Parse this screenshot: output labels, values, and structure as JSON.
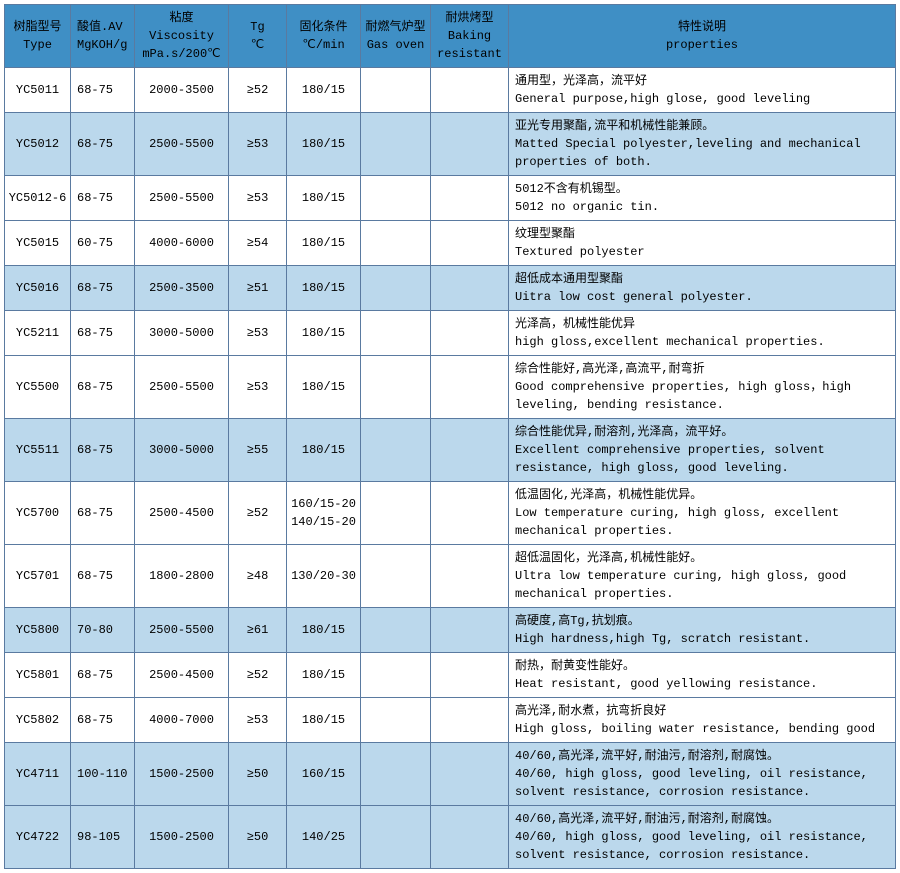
{
  "colors": {
    "header_bg": "#3f8fc5",
    "row_alt_bg": "#bbd8ec",
    "row_bg": "#ffffff",
    "border": "#5a7aa0",
    "text": "#000000"
  },
  "headers": {
    "type": "树脂型号\nType",
    "acid": "酸值.AV\nMgKOH/g",
    "visc": "粘度\nViscosity\nmPa.s/200℃",
    "tg": "Tg\n℃",
    "cure": "固化条件\n℃/min",
    "gas": "耐燃气炉型\nGas oven",
    "bake": "耐烘烤型\nBaking\nresistant",
    "prop": "特性说明\nproperties"
  },
  "rows": [
    {
      "alt": false,
      "type": "YC5011",
      "acid": "68-75",
      "visc": "2000-3500",
      "tg": "≥52",
      "cure": "180/15",
      "gas": "",
      "bake": "",
      "prop_cn": "通用型，光泽高，流平好",
      "prop_en": "General purpose,high glose, good leveling"
    },
    {
      "alt": true,
      "type": "YC5012",
      "acid": "68-75",
      "visc": "2500-5500",
      "tg": "≥53",
      "cure": "180/15",
      "gas": "",
      "bake": "",
      "prop_cn": "亚光专用聚酯,流平和机械性能兼顾。",
      "prop_en": "Matted Special polyester,leveling and mechanical properties of both."
    },
    {
      "alt": false,
      "type": "YC5012-6",
      "acid": "68-75",
      "visc": "2500-5500",
      "tg": "≥53",
      "cure": "180/15",
      "gas": "",
      "bake": "",
      "prop_cn": "5012不含有机锡型。",
      "prop_en": "5012 no organic tin."
    },
    {
      "alt": false,
      "type": "YC5015",
      "acid": "60-75",
      "visc": "4000-6000",
      "tg": "≥54",
      "cure": "180/15",
      "gas": "",
      "bake": "",
      "prop_cn": "纹理型聚酯",
      "prop_en": "Textured polyester"
    },
    {
      "alt": true,
      "type": "YC5016",
      "acid": "68-75",
      "visc": "2500-3500",
      "tg": "≥51",
      "cure": "180/15",
      "gas": "",
      "bake": "",
      "prop_cn": "超低成本通用型聚酯",
      "prop_en": "Uitra low cost general polyester."
    },
    {
      "alt": false,
      "type": "YC5211",
      "acid": "68-75",
      "visc": "3000-5000",
      "tg": "≥53",
      "cure": "180/15",
      "gas": "",
      "bake": "",
      "prop_cn": "光泽高，机械性能优异",
      "prop_en": "high gloss,excellent mechanical properties."
    },
    {
      "alt": false,
      "type": "YC5500",
      "acid": "68-75",
      "visc": "2500-5500",
      "tg": "≥53",
      "cure": "180/15",
      "gas": "",
      "bake": "",
      "prop_cn": "综合性能好,高光泽,高流平,耐弯折",
      "prop_en": "Good comprehensive properties, high gloss，high leveling, bending resistance."
    },
    {
      "alt": true,
      "type": "YC5511",
      "acid": "68-75",
      "visc": "3000-5000",
      "tg": "≥55",
      "cure": "180/15",
      "gas": "",
      "bake": "",
      "prop_cn": "综合性能优异,耐溶剂,光泽高，流平好。",
      "prop_en": "Excellent comprehensive properties, solvent resistance, high gloss, good leveling."
    },
    {
      "alt": false,
      "type": "YC5700",
      "acid": "68-75",
      "visc": "2500-4500",
      "tg": "≥52",
      "cure": "160/15-20\n140/15-20",
      "gas": "",
      "bake": "",
      "prop_cn": "低温固化,光泽高，机械性能优异。",
      "prop_en": "Low temperature curing, high gloss, excellent mechanical properties."
    },
    {
      "alt": false,
      "type": "YC5701",
      "acid": "68-75",
      "visc": "1800-2800",
      "tg": "≥48",
      "cure": "130/20-30",
      "gas": "",
      "bake": "",
      "prop_cn": "超低温固化，光泽高,机械性能好。",
      "prop_en": "Ultra low temperature curing, high gloss, good mechanical properties."
    },
    {
      "alt": true,
      "type": "YC5800",
      "acid": "70-80",
      "visc": "2500-5500",
      "tg": "≥61",
      "cure": "180/15",
      "gas": "",
      "bake": "",
      "prop_cn": "高硬度,高Tg,抗划痕。",
      "prop_en": "High hardness,high Tg, scratch resistant."
    },
    {
      "alt": false,
      "type": "YC5801",
      "acid": "68-75",
      "visc": "2500-4500",
      "tg": "≥52",
      "cure": "180/15",
      "gas": "",
      "bake": "",
      "prop_cn": "耐热，耐黄变性能好。",
      "prop_en": "Heat resistant, good yellowing resistance."
    },
    {
      "alt": false,
      "type": "YC5802",
      "acid": "68-75",
      "visc": "4000-7000",
      "tg": "≥53",
      "cure": "180/15",
      "gas": "",
      "bake": "",
      "prop_cn": "高光泽,耐水煮，抗弯折良好",
      "prop_en": "High gloss, boiling water resistance, bending good"
    },
    {
      "alt": true,
      "type": "YC4711",
      "acid": "100-110",
      "visc": "1500-2500",
      "tg": "≥50",
      "cure": "160/15",
      "gas": "",
      "bake": "",
      "prop_cn": "40/60,高光泽,流平好,耐油污,耐溶剂,耐腐蚀。",
      "prop_en": "40/60, high gloss, good leveling, oil resistance, solvent resistance, corrosion resistance."
    },
    {
      "alt": true,
      "type": "YC4722",
      "acid": "98-105",
      "visc": "1500-2500",
      "tg": "≥50",
      "cure": "140/25",
      "gas": "",
      "bake": "",
      "prop_cn": "40/60,高光泽,流平好,耐油污,耐溶剂,耐腐蚀。",
      "prop_en": "40/60, high gloss, good leveling, oil resistance, solvent resistance, corrosion resistance."
    }
  ]
}
